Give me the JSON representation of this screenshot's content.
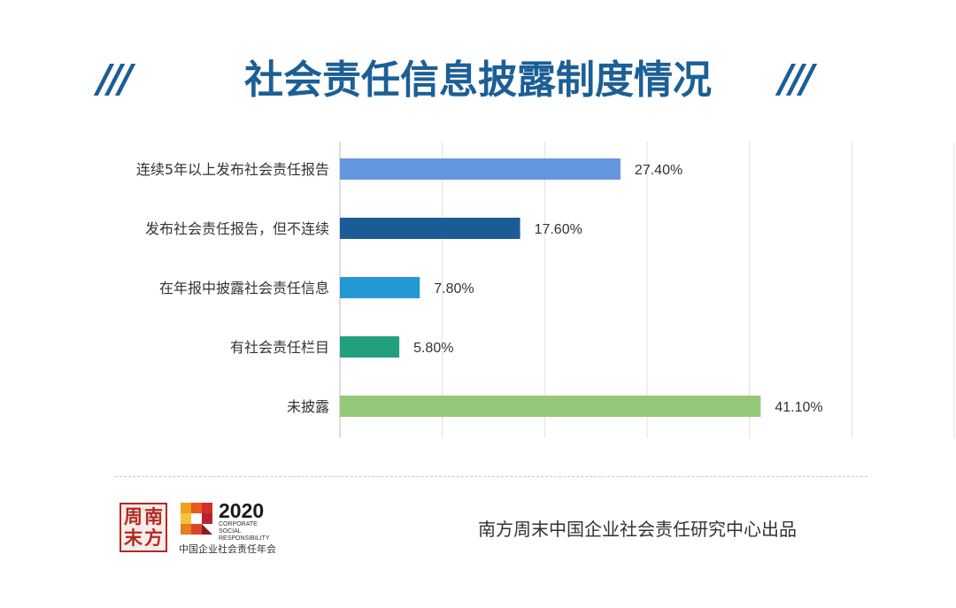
{
  "title": "社会责任信息披露制度情况",
  "decor": {
    "slash_left": "///",
    "slash_right": "///"
  },
  "chart_data": {
    "type": "bar",
    "orientation": "horizontal",
    "categories": [
      "连续5年以上发布社会责任报告",
      "发布社会责任报告，但不连续",
      "在年报中披露社会责任信息",
      "有社会责任栏目",
      "未披露"
    ],
    "values": [
      27.4,
      17.6,
      7.8,
      5.8,
      41.1
    ],
    "value_labels": [
      "27.40%",
      "17.60%",
      "7.80%",
      "5.80%",
      "41.10%"
    ],
    "colors": [
      "#6596e0",
      "#1b5c96",
      "#2399d3",
      "#22a07e",
      "#96c879"
    ],
    "xlim": [
      0,
      60
    ],
    "grid": true,
    "title": "",
    "xlabel": "",
    "ylabel": ""
  },
  "footer": {
    "seal_chars": [
      "周",
      "南",
      "末",
      "方"
    ],
    "csr_year": "2020",
    "csr_words": [
      "CORPORATE",
      "SOCIAL",
      "RESPONSIBILITY"
    ],
    "csr_cn": "中国企业社会责任年会",
    "credit": "南方周末中国企业社会责任研究中心出品"
  },
  "theme": {
    "title_color": "#1b5f96",
    "seal_color": "#b12a22"
  }
}
